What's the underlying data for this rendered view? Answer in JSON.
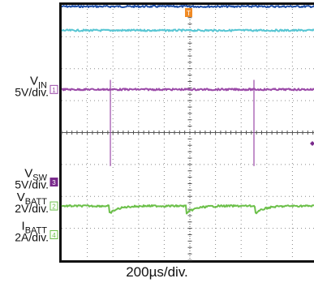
{
  "chart_data": {
    "type": "line",
    "timebase": "200µs/div.",
    "trigger_marker": "T",
    "channels": [
      {
        "id": "ch-blue",
        "color": "#1f4fa8",
        "waveform": "flat",
        "level_div": 3.95,
        "tick": "",
        "ch_number": "",
        "label_main": "",
        "label_sub": "",
        "scale": ""
      },
      {
        "id": "ch-cyan",
        "color": "#58c6d3",
        "waveform": "flat",
        "level_div": 3.2,
        "tick": "",
        "ch_number": "",
        "label_main": "",
        "label_sub": "",
        "scale": ""
      },
      {
        "id": "ch-vin",
        "color": "#9b4aa8",
        "waveform": "spikes",
        "level_div": 1.35,
        "spike_times_div": [
          1.9,
          7.5
        ],
        "spike_up_div": 0.3,
        "spike_down_div": 2.4,
        "tick": "",
        "ch_number": "1",
        "label_main": "V",
        "label_sub": "IN",
        "scale": "5V/div."
      },
      {
        "id": "ch-vsw",
        "color": "#7a2a8c",
        "waveform": "none",
        "level_div": -1.55,
        "ch_number": "3",
        "label_main": "V",
        "label_sub": "SW",
        "scale": "5V/div."
      },
      {
        "id": "ch-vbatt",
        "color": "#6cc04a",
        "waveform": "sag",
        "level_div": -2.3,
        "sag_times_div": [
          1.9,
          4.9,
          7.6
        ],
        "sag_depth_div": 0.22,
        "ch_number": "2",
        "label_main": "V",
        "label_sub": "BATT",
        "scale": "2V/div."
      },
      {
        "id": "ch-ibatt",
        "color": "#6cc04a",
        "waveform": "none",
        "level_div": -3.2,
        "ch_number": "4",
        "label_main": "I",
        "label_sub": "BATT",
        "scale": "2A/div."
      }
    ],
    "grid": {
      "x_divisions": 10,
      "y_divisions": 8
    }
  }
}
